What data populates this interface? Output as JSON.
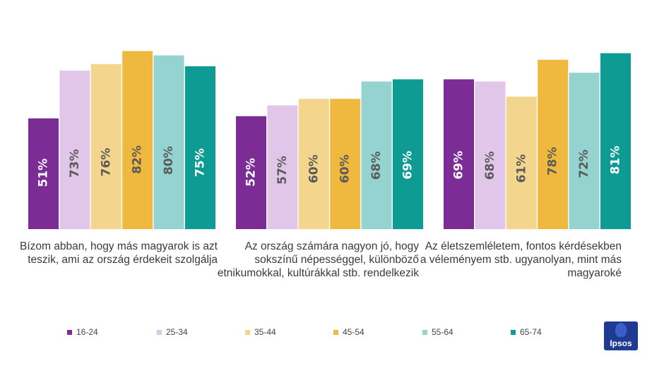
{
  "chart_data": {
    "type": "bar",
    "title": "",
    "xlabel": "",
    "ylabel": "",
    "ylim": [
      0,
      100
    ],
    "categories": [
      "Bízom abban, hogy más magyarok is azt teszik, ami az ország érdekeit szolgálja",
      "Az ország számára nagyon jó, hogy sokszínű népességgel, különböző etnikumokkal, kultúrákkal stb. rendelkezik",
      "Az életszemléletem, fontos kérdésekben a véleményem stb. ugyanolyan, mint más magyaroké"
    ],
    "series": [
      {
        "name": "16-24",
        "color": "#7b2d95",
        "values": [
          51,
          52,
          69
        ],
        "labels": [
          "51%",
          "52%",
          "69%"
        ]
      },
      {
        "name": "25-34",
        "color": "#e2c6ea",
        "values": [
          73,
          57,
          68
        ],
        "labels": [
          "73%",
          "57%",
          "68%"
        ]
      },
      {
        "name": "35-44",
        "color": "#f4d58e",
        "values": [
          76,
          60,
          61
        ],
        "labels": [
          "76%",
          "60%",
          "61%"
        ]
      },
      {
        "name": "45-54",
        "color": "#efb83f",
        "values": [
          82,
          60,
          78
        ],
        "labels": [
          "82%",
          "60%",
          "78%"
        ]
      },
      {
        "name": "55-64",
        "color": "#94d3cf",
        "values": [
          80,
          68,
          72
        ],
        "labels": [
          "80%",
          "68%",
          "72%"
        ]
      },
      {
        "name": "65-74",
        "color": "#0e9b94",
        "values": [
          75,
          69,
          81
        ],
        "labels": [
          "75%",
          "69%",
          "81%"
        ]
      }
    ],
    "legend_position": "bottom",
    "grid": false
  },
  "brand": {
    "logo_text": "Ipsos",
    "color": "#1f3a93"
  }
}
